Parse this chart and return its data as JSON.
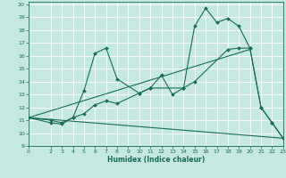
{
  "xlabel": "Humidex (Indice chaleur)",
  "xlim": [
    0,
    23
  ],
  "ylim": [
    9,
    20.2
  ],
  "xticks": [
    0,
    2,
    3,
    4,
    5,
    6,
    7,
    8,
    9,
    10,
    11,
    12,
    13,
    14,
    15,
    16,
    17,
    18,
    19,
    20,
    21,
    22,
    23
  ],
  "yticks": [
    9,
    10,
    11,
    12,
    13,
    14,
    15,
    16,
    17,
    18,
    19,
    20
  ],
  "bg_color": "#c5e8e0",
  "line_color": "#1a6b5a",
  "grid_color": "#ffffff",
  "series": [
    {
      "x": [
        0,
        2,
        3,
        4,
        5,
        6,
        7,
        8,
        10,
        11,
        12,
        13,
        14,
        15,
        16,
        17,
        18,
        19,
        20,
        21,
        22,
        23
      ],
      "y": [
        11.2,
        10.8,
        10.7,
        11.2,
        13.3,
        16.2,
        16.6,
        14.2,
        13.1,
        13.5,
        14.5,
        13.0,
        13.5,
        18.3,
        19.7,
        18.6,
        18.9,
        18.3,
        16.6,
        12.0,
        10.8,
        9.6
      ],
      "markers": true
    },
    {
      "x": [
        0,
        23
      ],
      "y": [
        11.2,
        9.6
      ],
      "markers": false
    },
    {
      "x": [
        0,
        2,
        3,
        4,
        5,
        6,
        7,
        8,
        10,
        11,
        14,
        15,
        18,
        19,
        20,
        21,
        22,
        23
      ],
      "y": [
        11.2,
        11.0,
        10.8,
        11.2,
        11.5,
        12.2,
        12.5,
        12.3,
        13.1,
        13.5,
        13.5,
        14.0,
        16.5,
        16.6,
        16.6,
        12.0,
        10.8,
        9.6
      ],
      "markers": true
    },
    {
      "x": [
        0,
        20
      ],
      "y": [
        11.2,
        16.5
      ],
      "markers": false
    }
  ]
}
